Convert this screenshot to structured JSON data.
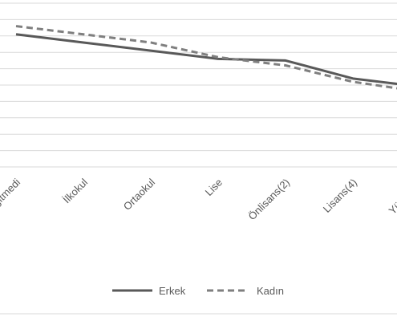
{
  "chart_data": {
    "type": "line",
    "categories": [
      "Hiç okula gitmedi",
      "İlkokul",
      "Ortaokul",
      "Lise",
      "Önlisans(2)",
      "Lisans(4)",
      "YükLis/Dr"
    ],
    "series": [
      {
        "name": "Erkek",
        "values": [
          8.1,
          7.6,
          7.1,
          6.6,
          6.5,
          5.4,
          4.9
        ],
        "color": "#595959",
        "dash": "solid"
      },
      {
        "name": "Kadın",
        "values": [
          8.6,
          8.1,
          7.6,
          6.7,
          6.2,
          5.2,
          4.6
        ],
        "color": "#7f7f7f",
        "dash": "dashed"
      }
    ],
    "ylim": [
      0,
      10
    ],
    "grid": true,
    "legend_position": "bottom"
  },
  "legend": {
    "items": [
      "Erkek",
      "Kadın"
    ]
  }
}
